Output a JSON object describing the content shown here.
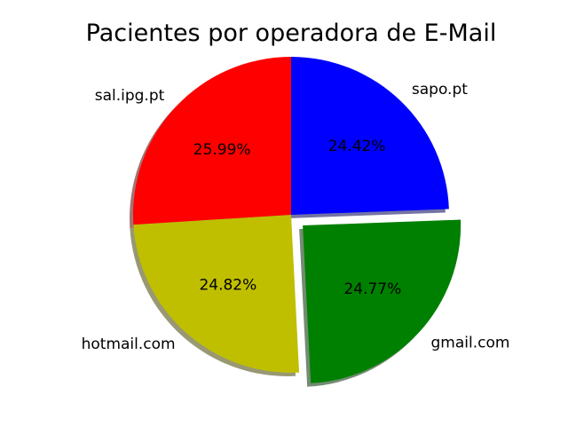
{
  "chart_data": {
    "type": "pie",
    "title": "Pacientes por operadora de E-Mail",
    "slices": [
      {
        "label": "sapo.pt",
        "value": 24.42,
        "pct_label": "24.42%",
        "color": "#0000ff",
        "explode": false
      },
      {
        "label": "gmail.com",
        "value": 24.77,
        "pct_label": "24.77%",
        "color": "#008000",
        "explode": true
      },
      {
        "label": "hotmail.com",
        "value": 24.82,
        "pct_label": "24.82%",
        "color": "#bfbf00",
        "explode": false
      },
      {
        "label": "sal.ipg.pt",
        "value": 25.99,
        "pct_label": "25.99%",
        "color": "#ff0000",
        "explode": false
      }
    ],
    "start_angle_deg": 90,
    "direction": "clockwise",
    "shadow": true
  }
}
